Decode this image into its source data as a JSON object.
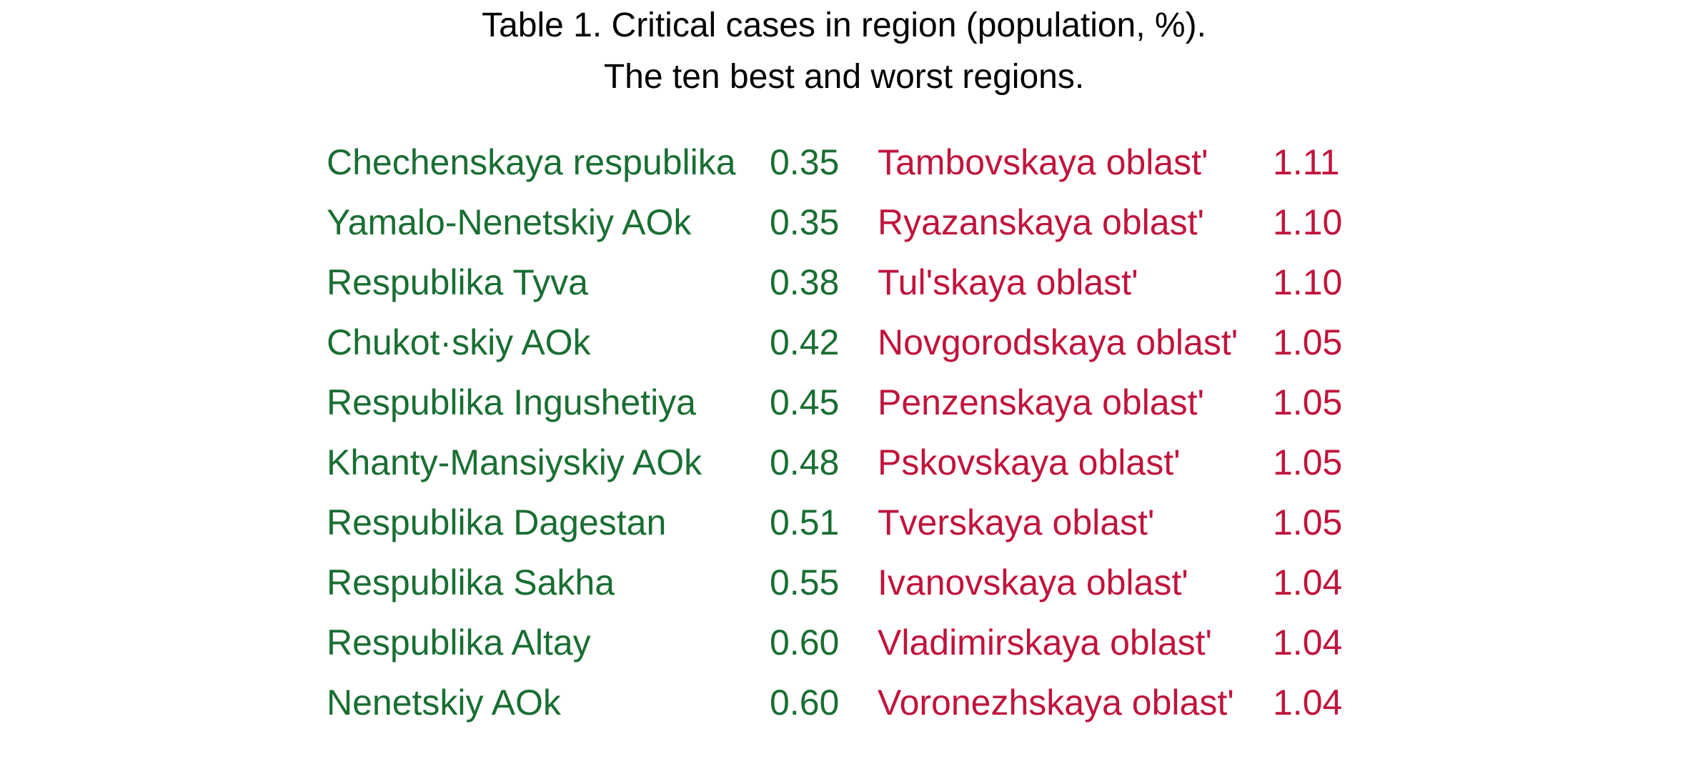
{
  "caption": {
    "line1": "Table 1. Critical cases in region (population, %).",
    "line2": "The ten best and worst regions."
  },
  "colors": {
    "best": "#1a6e33",
    "worst": "#c0143c",
    "caption": "#000000"
  },
  "rows": [
    {
      "best_region": "Chechenskaya respublika",
      "best_value": "0.35",
      "worst_region": "Tambovskaya oblastʹ",
      "worst_value": "1.11"
    },
    {
      "best_region": "Yamalo-Nenetskiy AOk",
      "best_value": "0.35",
      "worst_region": "Ryazanskaya oblastʹ",
      "worst_value": "1.10"
    },
    {
      "best_region": "Respublika Tyva",
      "best_value": "0.38",
      "worst_region": "Tulʹskaya oblastʹ",
      "worst_value": "1.10"
    },
    {
      "best_region": "Chukot·skiy AOk",
      "best_value": "0.42",
      "worst_region": "Novgorodskaya oblastʹ",
      "worst_value": "1.05"
    },
    {
      "best_region": "Respublika Ingushetiya",
      "best_value": "0.45",
      "worst_region": "Penzenskaya oblastʹ",
      "worst_value": "1.05"
    },
    {
      "best_region": "Khanty-Mansiyskiy AOk",
      "best_value": "0.48",
      "worst_region": "Pskovskaya oblastʹ",
      "worst_value": "1.05"
    },
    {
      "best_region": "Respublika Dagestan",
      "best_value": "0.51",
      "worst_region": "Tverskaya oblastʹ",
      "worst_value": "1.05"
    },
    {
      "best_region": "Respublika Sakha",
      "best_value": "0.55",
      "worst_region": "Ivanovskaya oblastʹ",
      "worst_value": "1.04"
    },
    {
      "best_region": "Respublika Altay",
      "best_value": "0.60",
      "worst_region": "Vladimirskaya oblastʹ",
      "worst_value": "1.04"
    },
    {
      "best_region": "Nenetskiy AOk",
      "best_value": "0.60",
      "worst_region": "Voronezhskaya oblastʹ",
      "worst_value": "1.04"
    }
  ]
}
